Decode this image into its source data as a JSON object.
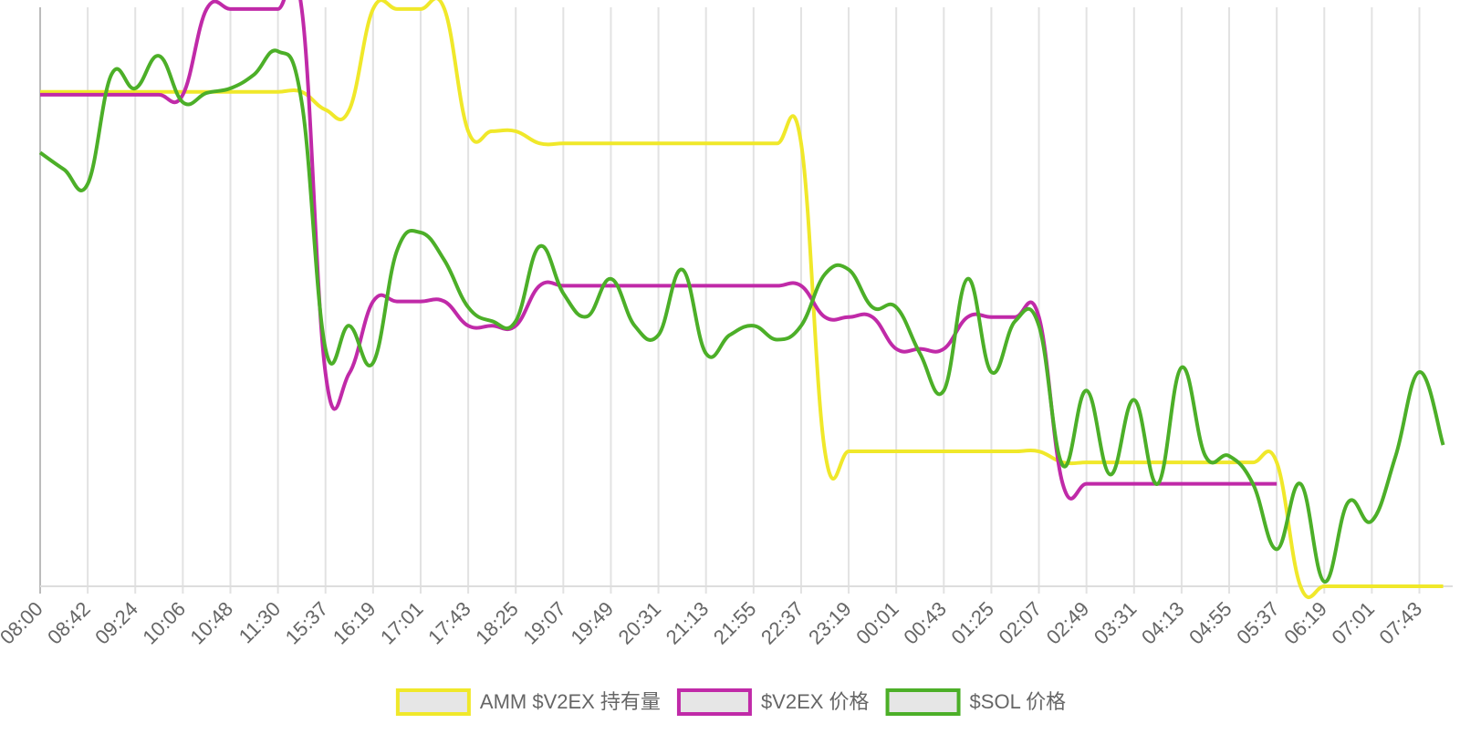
{
  "chart_data": {
    "type": "line",
    "categories": [
      "08:00",
      null,
      "08:42",
      null,
      "09:24",
      null,
      "10:06",
      null,
      "10:48",
      null,
      "11:30",
      null,
      "15:37",
      null,
      "16:19",
      null,
      "17:01",
      null,
      "17:43",
      null,
      "18:25",
      null,
      "19:07",
      null,
      "19:49",
      null,
      "20:31",
      null,
      "21:13",
      null,
      "21:55",
      null,
      "22:37",
      null,
      "23:19",
      null,
      "00:01",
      null,
      "00:43",
      null,
      "01:25",
      null,
      "02:07",
      null,
      "02:49",
      null,
      "03:31",
      null,
      "04:13",
      null,
      "04:55",
      null,
      "05:37",
      null,
      "06:19",
      null,
      "07:01",
      null,
      "07:43",
      null
    ],
    "series": [
      {
        "name": "AMM $V2EX 持有量",
        "color": "#f0e82a",
        "values": [
          85.4,
          85.4,
          85.4,
          85.4,
          85.4,
          85.4,
          85.4,
          85.4,
          85.4,
          85.4,
          85.4,
          85.4,
          82.3,
          82.3,
          99.7,
          99.7,
          99.7,
          99.7,
          78.6,
          78.6,
          78.6,
          76.5,
          76.5,
          76.5,
          76.5,
          76.5,
          76.5,
          76.5,
          76.5,
          76.5,
          76.5,
          76.5,
          76.5,
          23.3,
          23.3,
          23.3,
          23.3,
          23.3,
          23.3,
          23.3,
          23.3,
          23.3,
          23.3,
          21.4,
          21.4,
          21.4,
          21.4,
          21.4,
          21.4,
          21.4,
          21.4,
          21.4,
          21.4,
          0,
          0,
          0,
          0,
          0,
          0,
          0
        ]
      },
      {
        "name": "$V2EX 价格",
        "color": "#c02aa8",
        "values": [
          84.9,
          84.9,
          84.9,
          84.9,
          84.9,
          84.9,
          84.9,
          99.7,
          99.7,
          99.7,
          99.7,
          99.7,
          36.8,
          36.8,
          49.2,
          49.2,
          49.2,
          49.2,
          45.0,
          45.0,
          45.0,
          51.9,
          51.9,
          51.9,
          51.9,
          51.9,
          51.9,
          51.9,
          51.9,
          51.9,
          51.9,
          51.9,
          51.9,
          46.5,
          46.5,
          46.5,
          41.0,
          41.0,
          41.0,
          46.5,
          46.5,
          46.5,
          46.5,
          17.7,
          17.7,
          17.7,
          17.7,
          17.7,
          17.7,
          17.7,
          17.7,
          17.7,
          17.7,
          null,
          null,
          null,
          null,
          null,
          null,
          null
        ]
      },
      {
        "name": "$SOL 价格",
        "color": "#4caf28",
        "values": [
          74.9,
          72,
          69.5,
          88.4,
          86,
          91.6,
          83.6,
          85.2,
          86,
          88.4,
          92.4,
          83.6,
          41,
          45,
          38.6,
          57.9,
          61.1,
          56.3,
          48.2,
          45.8,
          45.8,
          58.7,
          50.6,
          46.6,
          53.1,
          45,
          43.4,
          54.7,
          40.2,
          43.4,
          45,
          42.6,
          45,
          53.9,
          54.7,
          48.2,
          48.2,
          40.2,
          33.8,
          53.1,
          37,
          45.8,
          45,
          20.9,
          33.8,
          19.3,
          32.2,
          17.7,
          37.8,
          22.5,
          22.5,
          17.7,
          6.4,
          17.7,
          0.8,
          14.5,
          11.3,
          22.5,
          37,
          24.4
        ]
      }
    ],
    "ylim": [
      0,
      100
    ],
    "grid": true
  }
}
